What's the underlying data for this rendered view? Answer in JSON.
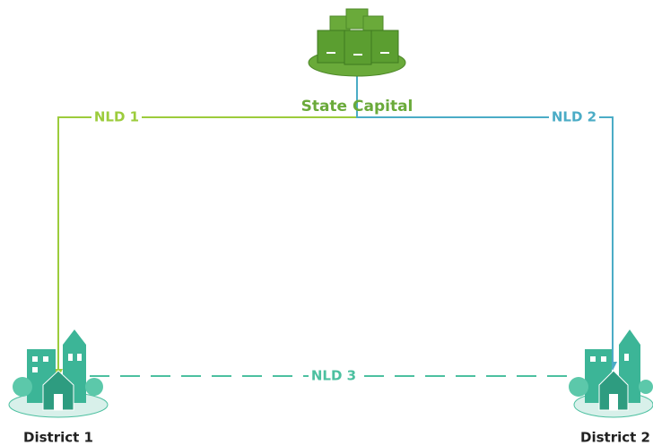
{
  "nodes": [
    {
      "label": "State Capital"
    },
    {
      "label": "District 1"
    },
    {
      "label": "District 2"
    }
  ],
  "links": [
    {
      "label": "NLD 1"
    },
    {
      "label": "NLD 2"
    },
    {
      "label": "NLD 3"
    }
  ]
}
